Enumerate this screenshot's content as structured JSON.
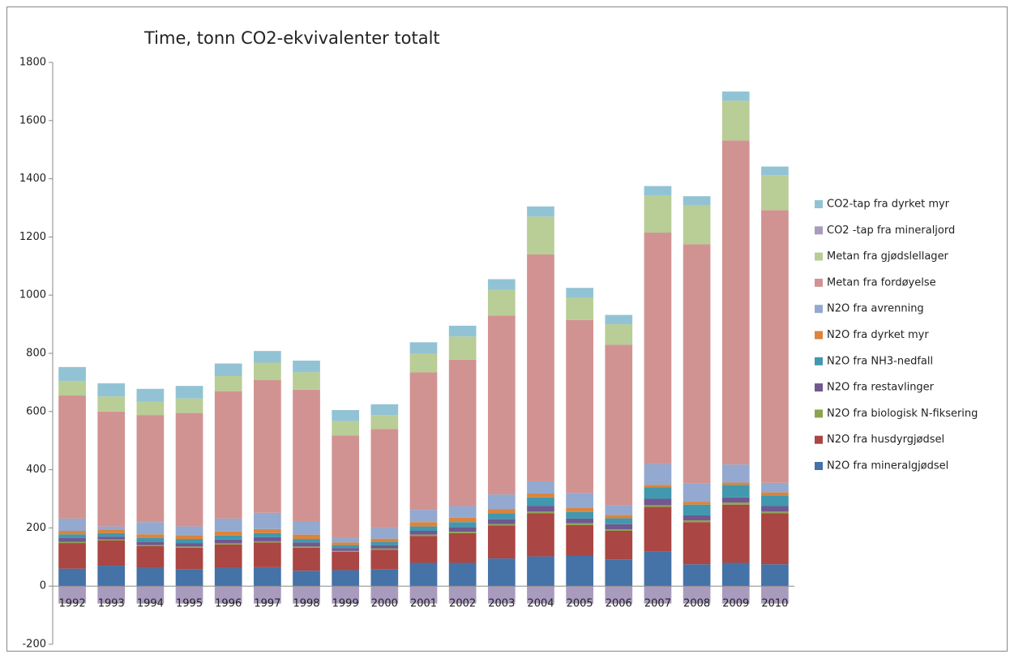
{
  "chart_data": {
    "type": "stacked-bar",
    "title": "Time, tonn CO2-ekvivalenter totalt",
    "categories": [
      "1992",
      "1993",
      "1994",
      "1995",
      "1996",
      "1997",
      "1998",
      "1999",
      "2000",
      "2001",
      "2002",
      "2003",
      "2004",
      "2005",
      "2006",
      "2007",
      "2008",
      "2009",
      "2010"
    ],
    "ylim": [
      -200,
      1800
    ],
    "yticks": [
      -200,
      0,
      200,
      400,
      600,
      800,
      1000,
      1200,
      1400,
      1600,
      1800
    ],
    "grid": false,
    "legend": "right",
    "series": [
      {
        "name": "N2O fra mineralgjødsel",
        "color": "#4572a7",
        "values": [
          60,
          70,
          62,
          57,
          62,
          65,
          53,
          55,
          57,
          80,
          80,
          95,
          102,
          105,
          92,
          120,
          75,
          80,
          75
        ]
      },
      {
        "name": "N2O fra husdyrgjødsel",
        "color": "#aa4643",
        "values": [
          88,
          87,
          75,
          75,
          81,
          85,
          79,
          63,
          68,
          92,
          102,
          113,
          148,
          105,
          98,
          152,
          145,
          200,
          175
        ]
      },
      {
        "name": "N2O fra biologisk N-fiksering",
        "color": "#89a54e",
        "values": [
          4,
          3,
          4,
          4,
          4,
          4,
          4,
          3,
          4,
          5,
          5,
          5,
          6,
          6,
          5,
          6,
          6,
          7,
          6
        ]
      },
      {
        "name": "N2O fra restavlinger",
        "color": "#71588f",
        "values": [
          13,
          10,
          11,
          12,
          13,
          14,
          14,
          10,
          11,
          13,
          16,
          17,
          19,
          16,
          18,
          22,
          17,
          18,
          19
        ]
      },
      {
        "name": "N2O fra NH3-nedfall",
        "color": "#4198af",
        "values": [
          13,
          12,
          13,
          14,
          14,
          14,
          12,
          10,
          11,
          15,
          17,
          20,
          30,
          23,
          20,
          40,
          37,
          43,
          37
        ]
      },
      {
        "name": "N2O fra dyrket myr",
        "color": "#db843d",
        "values": [
          12,
          13,
          13,
          13,
          14,
          14,
          15,
          9,
          12,
          15,
          15,
          15,
          13,
          13,
          12,
          8,
          10,
          8,
          10
        ]
      },
      {
        "name": "N2O fra avrenning",
        "color": "#93a9cf",
        "values": [
          42,
          10,
          42,
          30,
          44,
          56,
          45,
          15,
          37,
          42,
          40,
          50,
          42,
          52,
          33,
          72,
          62,
          62,
          33
        ]
      },
      {
        "name": "Metan fra fordøyelse",
        "color": "#d19392",
        "values": [
          423,
          395,
          368,
          390,
          438,
          456,
          453,
          353,
          340,
          473,
          503,
          615,
          780,
          595,
          552,
          795,
          823,
          1114,
          937
        ]
      },
      {
        "name": "Metan fra gjødslellager",
        "color": "#b9cd96",
        "values": [
          50,
          52,
          46,
          50,
          52,
          60,
          60,
          49,
          48,
          65,
          80,
          88,
          130,
          77,
          70,
          128,
          133,
          136,
          120
        ]
      },
      {
        "name": "CO2 -tap fra mineraljord",
        "color": "#a99bbd",
        "values": [
          -60,
          -60,
          -60,
          -60,
          -60,
          -60,
          -60,
          -60,
          -60,
          -60,
          -60,
          -60,
          -60,
          -60,
          -60,
          -60,
          -60,
          -60,
          -60
        ]
      },
      {
        "name": "CO2-tap fra dyrket myr",
        "color": "#92c3d5",
        "values": [
          48,
          45,
          44,
          43,
          43,
          40,
          40,
          38,
          37,
          38,
          37,
          37,
          35,
          33,
          32,
          32,
          32,
          32,
          30
        ]
      }
    ]
  }
}
